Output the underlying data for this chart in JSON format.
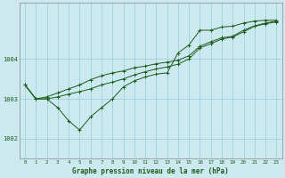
{
  "title": "Graphe pression niveau de la mer (hPa)",
  "bg_color": "#cce9f0",
  "grid_color": "#99ccdd",
  "line_color": "#1a5c1a",
  "x_ticks": [
    0,
    1,
    2,
    3,
    4,
    5,
    6,
    7,
    8,
    9,
    10,
    11,
    12,
    13,
    14,
    15,
    16,
    17,
    18,
    19,
    20,
    21,
    22,
    23
  ],
  "ylim": [
    1001.5,
    1005.4
  ],
  "yticks": [
    1002,
    1003,
    1004
  ],
  "line1": [
    1003.35,
    1003.0,
    1003.0,
    1002.78,
    1002.45,
    1002.22,
    1002.55,
    1002.78,
    1003.0,
    1003.3,
    1003.45,
    1003.55,
    1003.62,
    1003.65,
    1004.15,
    1004.35,
    1004.72,
    1004.72,
    1004.8,
    1004.82,
    1004.9,
    1004.95,
    1004.97,
    1004.97
  ],
  "line2": [
    1003.35,
    1003.0,
    1003.0,
    1003.05,
    1003.12,
    1003.18,
    1003.25,
    1003.35,
    1003.42,
    1003.5,
    1003.6,
    1003.68,
    1003.75,
    1003.8,
    1003.87,
    1004.0,
    1004.28,
    1004.38,
    1004.5,
    1004.55,
    1004.68,
    1004.82,
    1004.88,
    1004.93
  ],
  "line3": [
    1003.35,
    1003.0,
    1003.05,
    1003.15,
    1003.25,
    1003.35,
    1003.48,
    1003.58,
    1003.65,
    1003.7,
    1003.78,
    1003.82,
    1003.88,
    1003.92,
    1003.97,
    1004.08,
    1004.32,
    1004.43,
    1004.53,
    1004.57,
    1004.72,
    1004.83,
    1004.9,
    1004.95
  ]
}
